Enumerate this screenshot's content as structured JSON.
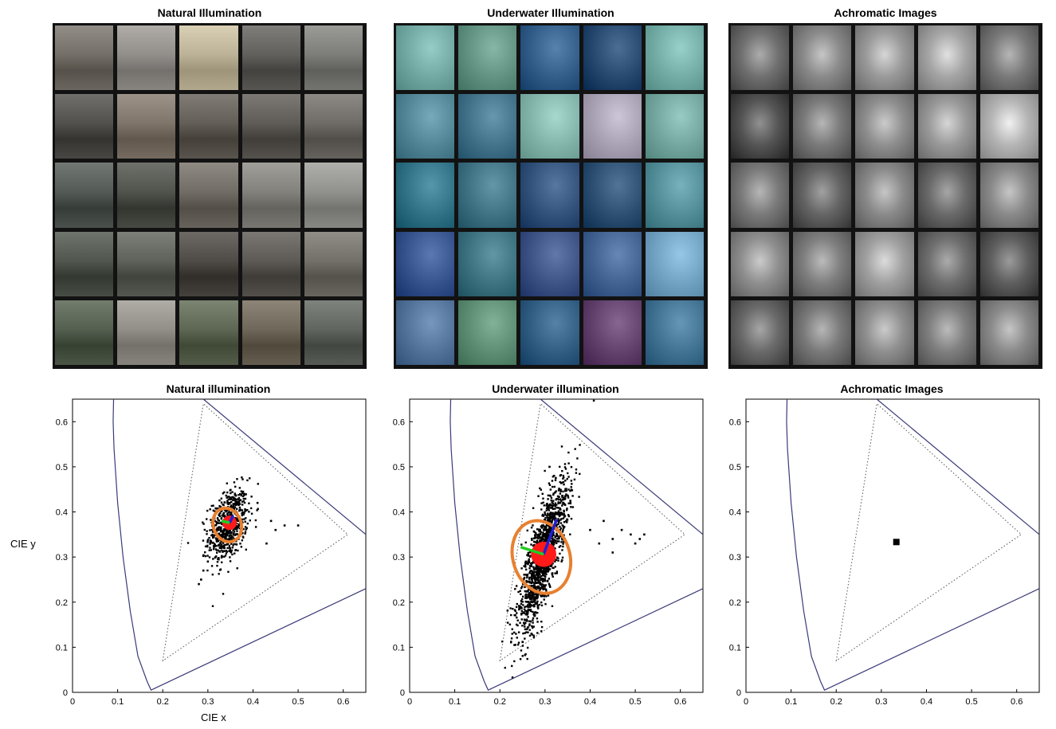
{
  "image_grids": [
    {
      "title": "Natural Illumination",
      "style": "street",
      "tiles": [
        [
          "#6f6a63",
          "#8d8a86",
          "#b6ad92",
          "#5d5b58",
          "#787874"
        ],
        [
          "#4e4c48",
          "#7a7065",
          "#5e5953",
          "#5a5752",
          "#6a6762"
        ],
        [
          "#4f5551",
          "#4b4f48",
          "#6c6760",
          "#7d7c76",
          "#8c8d88"
        ],
        [
          "#4c5249",
          "#5a5d55",
          "#4a4641",
          "#585550",
          "#6e6a64"
        ],
        [
          "#505a4b",
          "#8c8a82",
          "#59614f",
          "#6a6254",
          "#5c605a"
        ]
      ]
    },
    {
      "title": "Underwater Illumination",
      "style": "underwater",
      "tiles": [
        [
          "#6fa59f",
          "#5f8f7e",
          "#2f5a86",
          "#24456c",
          "#6fa9a1"
        ],
        [
          "#4f8393",
          "#3f6f86",
          "#7fb1a7",
          "#a59db0",
          "#6fa39b"
        ],
        [
          "#2f6f83",
          "#3c6f80",
          "#2f4f78",
          "#2a4d6f",
          "#4f8a95"
        ],
        [
          "#33508a",
          "#3a6f7e",
          "#3a4f82",
          "#3f5f8f",
          "#6f9fbf"
        ],
        [
          "#4f6f96",
          "#5a8a70",
          "#2f5a80",
          "#5f3f6a",
          "#3f6f8f"
        ]
      ]
    },
    {
      "title": "Achromatic Images",
      "style": "gray",
      "tiles": [
        [
          "#707070",
          "#8a8a8a",
          "#9a9a9a",
          "#a5a5a5",
          "#7a7a7a"
        ],
        [
          "#555555",
          "#7a7a7a",
          "#8f8f8f",
          "#9a9a9a",
          "#b5b5b5"
        ],
        [
          "#7a7a7a",
          "#656565",
          "#8a8a8a",
          "#6a6a6a",
          "#8a8a8a"
        ],
        [
          "#8f8f8f",
          "#7f7f7f",
          "#a0a0a0",
          "#6f6f6f",
          "#5f5f5f"
        ],
        [
          "#6a6a6a",
          "#7a7a7a",
          "#8f8f8f",
          "#7f7f7f",
          "#8a8a8a"
        ]
      ]
    }
  ],
  "chart_data": [
    {
      "type": "scatter",
      "title": "Natural illumination",
      "xlabel": "CIE x",
      "ylabel": "CIE y",
      "xlim": [
        0,
        0.65
      ],
      "ylim": [
        0,
        0.65
      ],
      "xticks": [
        "0",
        "0.1",
        "0.2",
        "0.3",
        "0.4",
        "0.5",
        "0.6"
      ],
      "yticks": [
        "0",
        "0.1",
        "0.2",
        "0.3",
        "0.4",
        "0.5",
        "0.6"
      ],
      "spectral_locus": [
        [
          0.091,
          0.65
        ],
        [
          0.09,
          0.6
        ],
        [
          0.092,
          0.54
        ],
        [
          0.1,
          0.42
        ],
        [
          0.112,
          0.3
        ],
        [
          0.128,
          0.18
        ],
        [
          0.145,
          0.08
        ],
        [
          0.165,
          0.025
        ],
        [
          0.174,
          0.005
        ],
        [
          0.65,
          0.23
        ]
      ],
      "gamut_triangle": [
        [
          0.2,
          0.07
        ],
        [
          0.29,
          0.64
        ],
        [
          0.61,
          0.35
        ]
      ],
      "outer_edge": [
        [
          0.29,
          0.65
        ],
        [
          0.65,
          0.35
        ]
      ],
      "cloud": {
        "cx": 0.345,
        "cy": 0.37,
        "sx": 0.022,
        "sy": 0.04,
        "rho": 0.35,
        "n": 650
      },
      "tail": [
        [
          0.28,
          0.24
        ],
        [
          0.29,
          0.27
        ],
        [
          0.285,
          0.25
        ],
        [
          0.3,
          0.29
        ],
        [
          0.44,
          0.38
        ],
        [
          0.45,
          0.36
        ],
        [
          0.47,
          0.37
        ],
        [
          0.5,
          0.37
        ],
        [
          0.43,
          0.33
        ],
        [
          0.41,
          0.42
        ]
      ],
      "mean": {
        "x": 0.348,
        "y": 0.376,
        "r": 0.016
      },
      "ellipse": {
        "cx": 0.343,
        "cy": 0.371,
        "rx": 0.031,
        "ry": 0.038,
        "angle": -20
      },
      "axis_major": [
        0.356,
        0.392
      ],
      "axis_minor": [
        0.33,
        0.38
      ],
      "colors": {
        "points": "#000000",
        "mean": "#ff1a1a",
        "ellipse": "#e8802f",
        "major": "#1f1fd6",
        "minor": "#22cc22",
        "locus": "#3a3a78",
        "triangle": "#555555"
      }
    },
    {
      "type": "scatter",
      "title": "Underwater illumination",
      "xlabel": "",
      "ylabel": "",
      "xlim": [
        0,
        0.65
      ],
      "ylim": [
        0,
        0.65
      ],
      "xticks": [
        "0",
        "0.1",
        "0.2",
        "0.3",
        "0.4",
        "0.5",
        "0.6"
      ],
      "yticks": [
        "0",
        "0.1",
        "0.2",
        "0.3",
        "0.4",
        "0.5",
        "0.6"
      ],
      "spectral_locus": [
        [
          0.091,
          0.65
        ],
        [
          0.09,
          0.6
        ],
        [
          0.092,
          0.54
        ],
        [
          0.1,
          0.42
        ],
        [
          0.112,
          0.3
        ],
        [
          0.128,
          0.18
        ],
        [
          0.145,
          0.08
        ],
        [
          0.165,
          0.025
        ],
        [
          0.174,
          0.005
        ],
        [
          0.65,
          0.23
        ]
      ],
      "gamut_triangle": [
        [
          0.2,
          0.07
        ],
        [
          0.29,
          0.64
        ],
        [
          0.61,
          0.35
        ]
      ],
      "outer_edge": [
        [
          0.29,
          0.65
        ],
        [
          0.65,
          0.35
        ]
      ],
      "cloud": {
        "cx": 0.295,
        "cy": 0.3,
        "sx": 0.028,
        "sy": 0.085,
        "rho": 0.8,
        "n": 1400
      },
      "tail": [
        [
          0.49,
          0.35
        ],
        [
          0.51,
          0.34
        ],
        [
          0.52,
          0.35
        ],
        [
          0.5,
          0.33
        ],
        [
          0.47,
          0.36
        ],
        [
          0.45,
          0.34
        ],
        [
          0.43,
          0.38
        ],
        [
          0.4,
          0.36
        ],
        [
          0.42,
          0.33
        ],
        [
          0.45,
          0.31
        ],
        [
          0.31,
          0.5
        ],
        [
          0.32,
          0.48
        ],
        [
          0.26,
          0.14
        ],
        [
          0.27,
          0.13
        ]
      ],
      "mean": {
        "x": 0.297,
        "y": 0.306,
        "r": 0.028
      },
      "ellipse": {
        "cx": 0.292,
        "cy": 0.3,
        "rx": 0.063,
        "ry": 0.082,
        "angle": -17
      },
      "axis_major": [
        0.326,
        0.384
      ],
      "axis_minor": [
        0.246,
        0.322
      ],
      "colors": {
        "points": "#000000",
        "mean": "#ff1a1a",
        "ellipse": "#e8802f",
        "major": "#1f1fd6",
        "minor": "#22cc22",
        "locus": "#3a3a78",
        "triangle": "#555555"
      }
    },
    {
      "type": "scatter",
      "title": "Achromatic Images",
      "xlabel": "",
      "ylabel": "",
      "xlim": [
        0,
        0.65
      ],
      "ylim": [
        0,
        0.65
      ],
      "xticks": [
        "0",
        "0.1",
        "0.2",
        "0.3",
        "0.4",
        "0.5",
        "0.6"
      ],
      "yticks": [
        "0",
        "0.1",
        "0.2",
        "0.3",
        "0.4",
        "0.5",
        "0.6"
      ],
      "spectral_locus": [
        [
          0.091,
          0.65
        ],
        [
          0.09,
          0.6
        ],
        [
          0.092,
          0.54
        ],
        [
          0.1,
          0.42
        ],
        [
          0.112,
          0.3
        ],
        [
          0.128,
          0.18
        ],
        [
          0.145,
          0.08
        ],
        [
          0.165,
          0.025
        ],
        [
          0.174,
          0.005
        ],
        [
          0.65,
          0.23
        ]
      ],
      "gamut_triangle": [
        [
          0.2,
          0.07
        ],
        [
          0.29,
          0.64
        ],
        [
          0.61,
          0.35
        ]
      ],
      "outer_edge": [
        [
          0.29,
          0.65
        ],
        [
          0.65,
          0.35
        ]
      ],
      "single_point": {
        "x": 0.3333,
        "y": 0.3333
      },
      "colors": {
        "points": "#000000",
        "locus": "#3a3a78",
        "triangle": "#555555"
      }
    }
  ]
}
